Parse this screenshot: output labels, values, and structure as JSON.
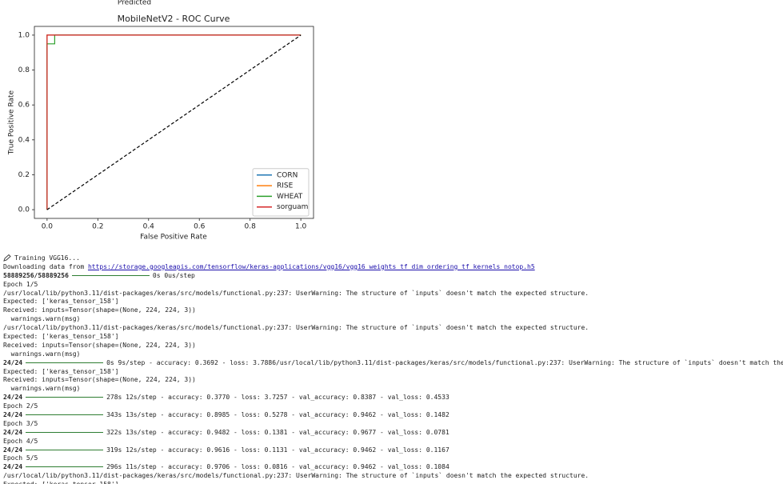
{
  "top_cut_label": "Predicted",
  "chart_data": {
    "type": "line",
    "title": "MobileNetV2 - ROC Curve",
    "xlabel": "False Positive Rate",
    "ylabel": "True Positive Rate",
    "xlim": [
      -0.05,
      1.05
    ],
    "ylim": [
      -0.05,
      1.05
    ],
    "xticks": [
      {
        "value": 0,
        "label": "0.0"
      },
      0.2,
      0.4,
      0.6,
      0.8,
      {
        "value": 1,
        "label": "1.0"
      }
    ],
    "yticks": [
      {
        "value": 0,
        "label": "0.0"
      },
      0.2,
      0.4,
      0.6,
      0.8,
      {
        "value": 1,
        "label": "1.0"
      }
    ],
    "legend": "lower right",
    "series": [
      {
        "name": "CORN",
        "color": "#1f77b4",
        "x": [
          0,
          0,
          1
        ],
        "values": [
          0,
          1,
          1
        ]
      },
      {
        "name": "RISE",
        "color": "#ff7f0e",
        "x": [
          0,
          0,
          1
        ],
        "values": [
          0,
          1,
          1
        ]
      },
      {
        "name": "WHEAT",
        "color": "#2ca02c",
        "x": [
          0,
          0,
          0.03,
          0.03,
          1
        ],
        "values": [
          0,
          0.95,
          0.95,
          1,
          1
        ]
      },
      {
        "name": "sorguam",
        "color": "#d62728",
        "x": [
          0,
          0,
          1
        ],
        "values": [
          0,
          1,
          1
        ]
      }
    ],
    "reference": {
      "color": "#000000",
      "x": [
        0,
        1
      ],
      "values": [
        0,
        1
      ]
    }
  },
  "console": {
    "lines": [
      {
        "text": "Training VGG16..."
      },
      {
        "text": "Downloading data from ",
        "link": "https://storage.googleapis.com/tensorflow/keras-applications/vgg16/vgg16_weights_tf_dim_ordering_tf_kernels_notop.h5"
      },
      {
        "step": "58889256/58889256",
        "status": "0s 0us/step"
      },
      {
        "text": "Epoch 1/5"
      },
      {
        "text": "/usr/local/lib/python3.11/dist-packages/keras/src/models/functional.py:237: UserWarning: The structure of `inputs` doesn't match the expected structure."
      },
      {
        "text": "Expected: ['keras_tensor_158']"
      },
      {
        "text": "Received: inputs=Tensor(shape=(None, 224, 224, 3))"
      },
      {
        "text": "  warnings.warn(msg)"
      },
      {
        "text": "/usr/local/lib/python3.11/dist-packages/keras/src/models/functional.py:237: UserWarning: The structure of `inputs` doesn't match the expected structure."
      },
      {
        "text": "Expected: ['keras_tensor_158']"
      },
      {
        "text": "Received: inputs=Tensor(shape=(None, 224, 224, 3))"
      },
      {
        "text": "  warnings.warn(msg)"
      },
      {
        "step": "24/24",
        "status": "0s 9s/step - accuracy: 0.3692 - loss: 3.7886/usr/local/lib/python3.11/dist-packages/keras/src/models/functional.py:237: UserWarning: The structure of `inputs` doesn't match the"
      },
      {
        "text": "Expected: ['keras_tensor_158']"
      },
      {
        "text": "Received: inputs=Tensor(shape=(None, 224, 224, 3))"
      },
      {
        "text": "  warnings.warn(msg)"
      },
      {
        "step": "24/24",
        "status": "278s 12s/step - accuracy: 0.3770 - loss: 3.7257 - val_accuracy: 0.8387 - val_loss: 0.4533"
      },
      {
        "text": "Epoch 2/5"
      },
      {
        "step": "24/24",
        "status": "343s 13s/step - accuracy: 0.8985 - loss: 0.5278 - val_accuracy: 0.9462 - val_loss: 0.1482"
      },
      {
        "text": "Epoch 3/5"
      },
      {
        "step": "24/24",
        "status": "322s 13s/step - accuracy: 0.9482 - loss: 0.1381 - val_accuracy: 0.9677 - val_loss: 0.0781"
      },
      {
        "text": "Epoch 4/5"
      },
      {
        "step": "24/24",
        "status": "319s 12s/step - accuracy: 0.9616 - loss: 0.1131 - val_accuracy: 0.9462 - val_loss: 0.1167"
      },
      {
        "text": "Epoch 5/5"
      },
      {
        "step": "24/24",
        "status": "296s 11s/step - accuracy: 0.9706 - loss: 0.0816 - val_accuracy: 0.9462 - val_loss: 0.1084"
      },
      {
        "text": "/usr/local/lib/python3.11/dist-packages/keras/src/models/functional.py:237: UserWarning: The structure of `inputs` doesn't match the expected structure."
      },
      {
        "text": "Expected: ['keras_tensor_158']"
      }
    ]
  }
}
